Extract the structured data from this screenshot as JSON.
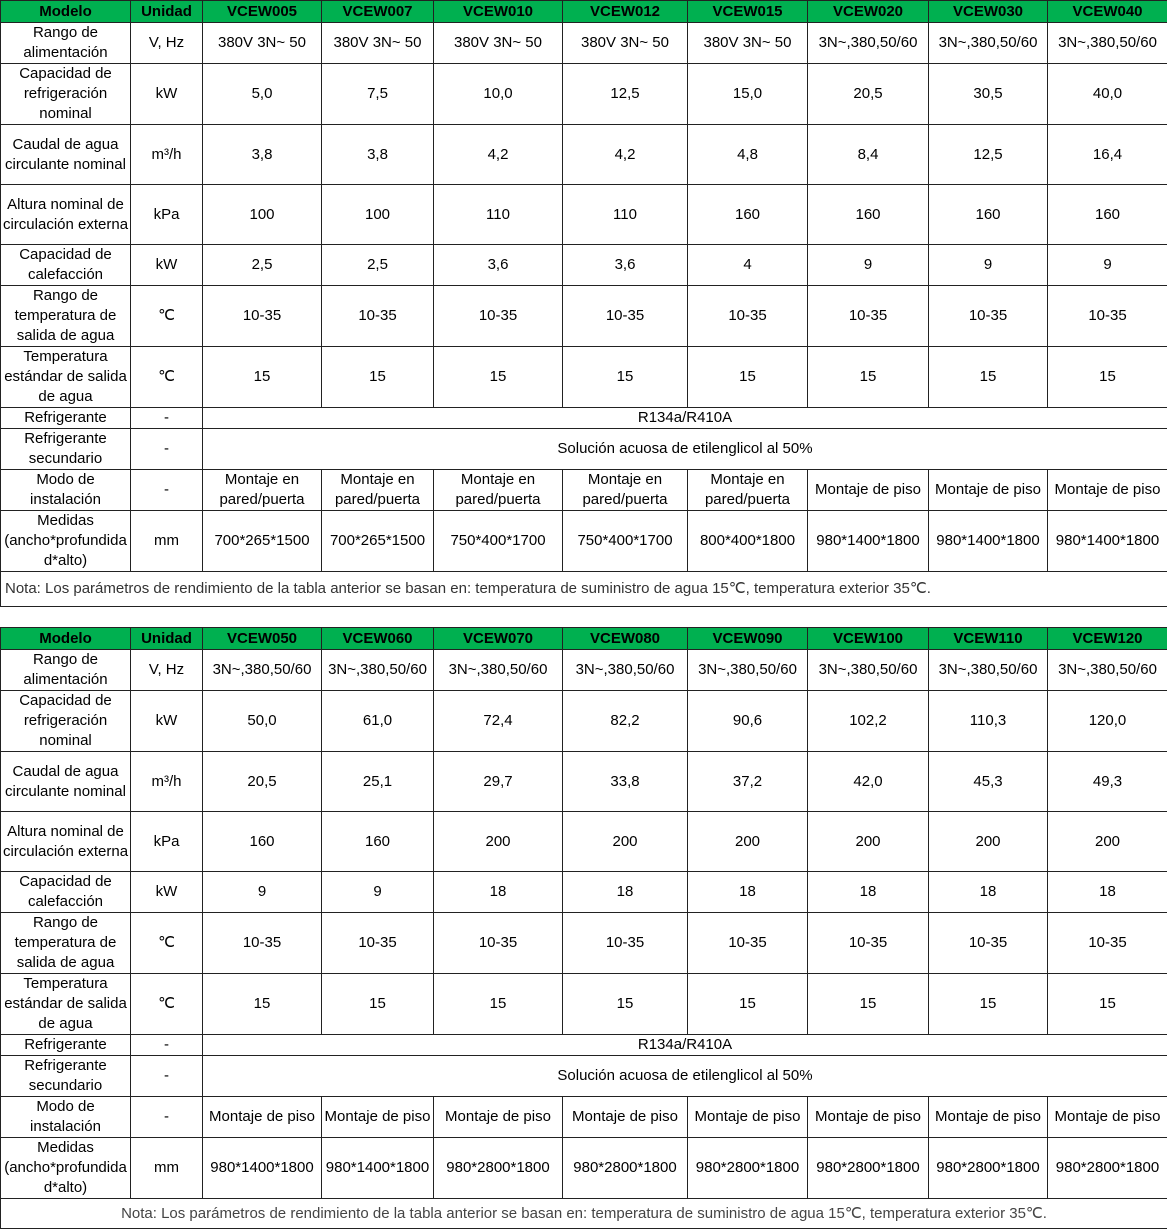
{
  "colors": {
    "header_bg": "#00b050"
  },
  "tables": [
    {
      "header": [
        "Modelo",
        "Unidad",
        "VCEW005",
        "VCEW007",
        "VCEW010",
        "VCEW012",
        "VCEW015",
        "VCEW020",
        "VCEW030",
        "VCEW040"
      ],
      "rows": [
        {
          "label": "Rango de alimentación",
          "unit": "V, Hz",
          "values": [
            "380V 3N~ 50",
            "380V 3N~ 50",
            "380V 3N~ 50",
            "380V 3N~ 50",
            "380V 3N~ 50",
            "3N~,380,50/60",
            "3N~,380,50/60",
            "3N~,380,50/60"
          ]
        },
        {
          "label": "Capacidad de refrigeración nominal",
          "unit": "kW",
          "values": [
            "5,0",
            "7,5",
            "10,0",
            "12,5",
            "15,0",
            "20,5",
            "30,5",
            "40,0"
          ]
        },
        {
          "label": "Caudal de agua circulante nominal",
          "unit": "m³/h",
          "values": [
            "3,8",
            "3,8",
            "4,2",
            "4,2",
            "4,8",
            "8,4",
            "12,5",
            "16,4"
          ]
        },
        {
          "label": "Altura nominal de circulación externa",
          "unit": "kPa",
          "values": [
            "100",
            "100",
            "110",
            "110",
            "160",
            "160",
            "160",
            "160"
          ]
        },
        {
          "label": "Capacidad de calefacción",
          "unit": "kW",
          "values": [
            "2,5",
            "2,5",
            "3,6",
            "3,6",
            "4",
            "9",
            "9",
            "9"
          ]
        },
        {
          "label": "Rango de temperatura de salida de agua",
          "unit": "℃",
          "values": [
            "10-35",
            "10-35",
            "10-35",
            "10-35",
            "10-35",
            "10-35",
            "10-35",
            "10-35"
          ]
        },
        {
          "label": "Temperatura estándar de salida de agua",
          "unit": "℃",
          "values": [
            "15",
            "15",
            "15",
            "15",
            "15",
            "15",
            "15",
            "15"
          ]
        },
        {
          "label": "Refrigerante",
          "unit": "-",
          "merged": "R134a/R410A"
        },
        {
          "label": "Refrigerante secundario",
          "unit": "-",
          "merged": "Solución acuosa de etilenglicol al 50%"
        },
        {
          "label": "Modo de instalación",
          "unit": "-",
          "values": [
            "Montaje en pared/puerta",
            "Montaje en pared/puerta",
            "Montaje en pared/puerta",
            "Montaje en pared/puerta",
            "Montaje en pared/puerta",
            "Montaje de piso",
            "Montaje de piso",
            "Montaje de piso"
          ]
        },
        {
          "label": "Medidas (ancho*profundidad*alto)",
          "unit": "mm",
          "values": [
            "700*265*1500",
            "700*265*1500",
            "750*400*1700",
            "750*400*1700",
            "800*400*1800",
            "980*1400*1800",
            "980*1400*1800",
            "980*1400*1800"
          ]
        }
      ],
      "note": "Nota: Los parámetros de rendimiento de la tabla anterior se basan en: temperatura de suministro de agua 15℃, temperatura exterior 35℃."
    },
    {
      "header": [
        "Modelo",
        "Unidad",
        "VCEW050",
        "VCEW060",
        "VCEW070",
        "VCEW080",
        "VCEW090",
        "VCEW100",
        "VCEW110",
        "VCEW120"
      ],
      "rows": [
        {
          "label": "Rango de alimentación",
          "unit": "V, Hz",
          "values": [
            "3N~,380,50/60",
            "3N~,380,50/60",
            "3N~,380,50/60",
            "3N~,380,50/60",
            "3N~,380,50/60",
            "3N~,380,50/60",
            "3N~,380,50/60",
            "3N~,380,50/60"
          ]
        },
        {
          "label": "Capacidad de refrigeración nominal",
          "unit": "kW",
          "values": [
            "50,0",
            "61,0",
            "72,4",
            "82,2",
            "90,6",
            "102,2",
            "110,3",
            "120,0"
          ]
        },
        {
          "label": "Caudal de agua circulante nominal",
          "unit": "m³/h",
          "values": [
            "20,5",
            "25,1",
            "29,7",
            "33,8",
            "37,2",
            "42,0",
            "45,3",
            "49,3"
          ]
        },
        {
          "label": "Altura nominal de circulación externa",
          "unit": "kPa",
          "values": [
            "160",
            "160",
            "200",
            "200",
            "200",
            "200",
            "200",
            "200"
          ]
        },
        {
          "label": "Capacidad de calefacción",
          "unit": "kW",
          "values": [
            "9",
            "9",
            "18",
            "18",
            "18",
            "18",
            "18",
            "18"
          ]
        },
        {
          "label": "Rango de temperatura de salida de agua",
          "unit": "℃",
          "values": [
            "10-35",
            "10-35",
            "10-35",
            "10-35",
            "10-35",
            "10-35",
            "10-35",
            "10-35"
          ]
        },
        {
          "label": "Temperatura estándar de salida de agua",
          "unit": "℃",
          "values": [
            "15",
            "15",
            "15",
            "15",
            "15",
            "15",
            "15",
            "15"
          ]
        },
        {
          "label": "Refrigerante",
          "unit": "-",
          "merged": "R134a/R410A"
        },
        {
          "label": "Refrigerante secundario",
          "unit": "-",
          "merged": "Solución acuosa de etilenglicol al 50%"
        },
        {
          "label": "Modo de instalación",
          "unit": "-",
          "values": [
            "Montaje de piso",
            "Montaje de piso",
            "Montaje de piso",
            "Montaje de piso",
            "Montaje de piso",
            "Montaje de piso",
            "Montaje de piso",
            "Montaje de piso"
          ]
        },
        {
          "label": "Medidas (ancho*profundidad*alto)",
          "unit": "mm",
          "values": [
            "980*1400*1800",
            "980*1400*1800",
            "980*2800*1800",
            "980*2800*1800",
            "980*2800*1800",
            "980*2800*1800",
            "980*2800*1800",
            "980*2800*1800"
          ]
        }
      ],
      "note": "Nota: Los parámetros de rendimiento de la tabla anterior se basan en: temperatura de suministro de agua 15℃, temperatura exterior 35℃."
    }
  ]
}
